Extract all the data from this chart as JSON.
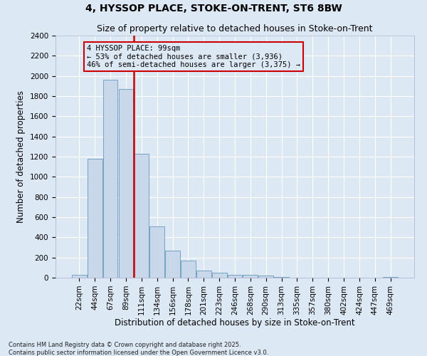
{
  "title1": "4, HYSSOP PLACE, STOKE-ON-TRENT, ST6 8BW",
  "title2": "Size of property relative to detached houses in Stoke-on-Trent",
  "xlabel": "Distribution of detached houses by size in Stoke-on-Trent",
  "ylabel": "Number of detached properties",
  "footnote1": "Contains HM Land Registry data © Crown copyright and database right 2025.",
  "footnote2": "Contains public sector information licensed under the Open Government Licence v3.0.",
  "annotation_line1": "4 HYSSOP PLACE: 99sqm",
  "annotation_line2": "← 53% of detached houses are smaller (3,936)",
  "annotation_line3": "46% of semi-detached houses are larger (3,375) →",
  "bin_labels": [
    "22sqm",
    "44sqm",
    "67sqm",
    "89sqm",
    "111sqm",
    "134sqm",
    "156sqm",
    "178sqm",
    "201sqm",
    "223sqm",
    "246sqm",
    "268sqm",
    "290sqm",
    "313sqm",
    "335sqm",
    "357sqm",
    "380sqm",
    "402sqm",
    "424sqm",
    "447sqm",
    "469sqm"
  ],
  "bar_values": [
    30,
    1180,
    1960,
    1870,
    1230,
    510,
    270,
    170,
    70,
    50,
    30,
    25,
    18,
    8,
    3,
    2,
    1,
    1,
    1,
    0,
    5
  ],
  "bar_color": "#c8d8ea",
  "bar_edge_color": "#6699bb",
  "vline_color": "#cc0000",
  "ylim": [
    0,
    2400
  ],
  "yticks": [
    0,
    200,
    400,
    600,
    800,
    1000,
    1200,
    1400,
    1600,
    1800,
    2000,
    2200,
    2400
  ],
  "bg_color": "#dde8f5",
  "grid_color": "#ffffff",
  "annotation_box_color": "#cc0000",
  "title_fontsize": 10,
  "subtitle_fontsize": 9,
  "axis_label_fontsize": 8.5,
  "tick_fontsize": 7.5,
  "annotation_fontsize": 7.5,
  "footnote_fontsize": 6
}
